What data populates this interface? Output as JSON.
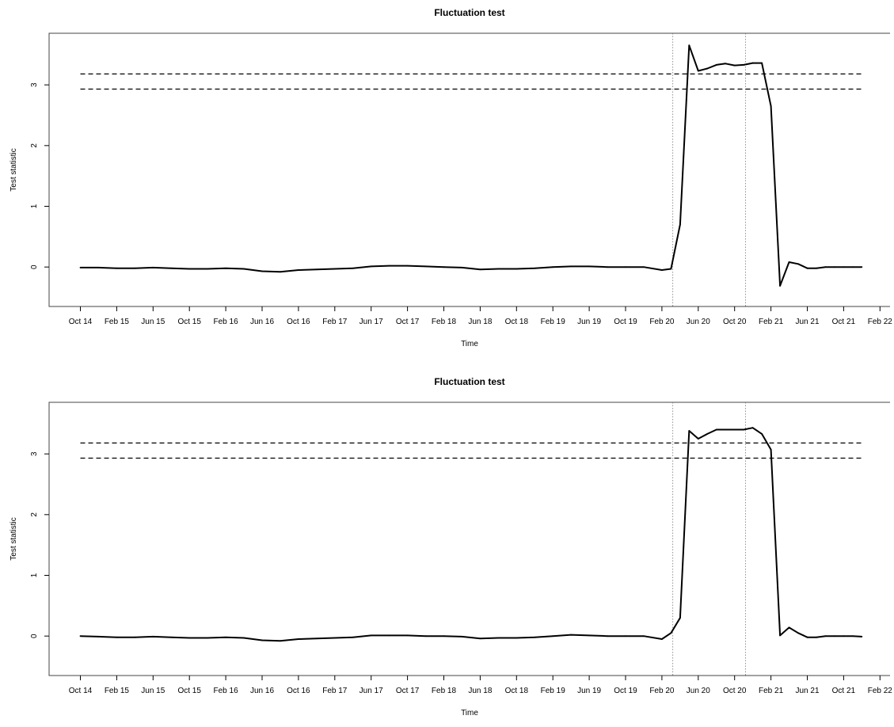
{
  "chart_data": [
    {
      "type": "line",
      "title": "Fluctuation test",
      "xlabel": "Time",
      "ylabel": "Test statistic",
      "x_tick_labels": [
        "Oct 14",
        "Feb 15",
        "Jun 15",
        "Oct 15",
        "Feb 16",
        "Jun 16",
        "Oct 16",
        "Feb 17",
        "Jun 17",
        "Oct 17",
        "Feb 18",
        "Jun 18",
        "Oct 18",
        "Feb 19",
        "Jun 19",
        "Oct 19",
        "Feb 20",
        "Jun 20",
        "Oct 20",
        "Feb 21",
        "Jun 21",
        "Oct 21",
        "Feb 22"
      ],
      "x_tick_months": [
        0,
        4,
        8,
        12,
        16,
        20,
        24,
        28,
        32,
        36,
        40,
        44,
        48,
        52,
        56,
        60,
        64,
        68,
        72,
        76,
        80,
        84,
        88
      ],
      "y_ticks": [
        0,
        1,
        2,
        3
      ],
      "xlim": [
        0,
        88
      ],
      "ylim": [
        -0.65,
        3.85
      ],
      "grid": false,
      "critical_values": [
        3.18,
        2.93
      ],
      "reference_lines_x_month": [
        65.2,
        73.2
      ],
      "series": [
        {
          "x_month": [
            0,
            2,
            4,
            6,
            8,
            10,
            12,
            14,
            16,
            18,
            20,
            22,
            24,
            26,
            28,
            30,
            32,
            34,
            36,
            38,
            40,
            42,
            44,
            46,
            48,
            50,
            52,
            54,
            56,
            58,
            60,
            62,
            64,
            65,
            66,
            67,
            68,
            69,
            70,
            71,
            72,
            73,
            74,
            75,
            76,
            77,
            78,
            79,
            80,
            81,
            82,
            83,
            84,
            85,
            86
          ],
          "values": [
            -0.01,
            -0.01,
            -0.02,
            -0.02,
            -0.01,
            -0.02,
            -0.03,
            -0.03,
            -0.02,
            -0.03,
            -0.07,
            -0.08,
            -0.05,
            -0.04,
            -0.03,
            -0.02,
            0.01,
            0.02,
            0.02,
            0.01,
            0.0,
            -0.01,
            -0.04,
            -0.03,
            -0.03,
            -0.02,
            0.0,
            0.01,
            0.01,
            0.0,
            0.0,
            0.0,
            -0.05,
            -0.03,
            0.7,
            3.65,
            3.23,
            3.27,
            3.33,
            3.35,
            3.32,
            3.33,
            3.36,
            3.36,
            2.65,
            -0.31,
            0.08,
            0.05,
            -0.02,
            -0.02,
            0.0,
            0.0,
            0.0,
            0.0,
            0.0
          ]
        }
      ]
    },
    {
      "type": "line",
      "title": "Fluctuation test",
      "xlabel": "Time",
      "ylabel": "Test statistic",
      "x_tick_labels": [
        "Oct 14",
        "Feb 15",
        "Jun 15",
        "Oct 15",
        "Feb 16",
        "Jun 16",
        "Oct 16",
        "Feb 17",
        "Jun 17",
        "Oct 17",
        "Feb 18",
        "Jun 18",
        "Oct 18",
        "Feb 19",
        "Jun 19",
        "Oct 19",
        "Feb 20",
        "Jun 20",
        "Oct 20",
        "Feb 21",
        "Jun 21",
        "Oct 21",
        "Feb 22"
      ],
      "x_tick_months": [
        0,
        4,
        8,
        12,
        16,
        20,
        24,
        28,
        32,
        36,
        40,
        44,
        48,
        52,
        56,
        60,
        64,
        68,
        72,
        76,
        80,
        84,
        88
      ],
      "y_ticks": [
        0,
        1,
        2,
        3
      ],
      "xlim": [
        0,
        88
      ],
      "ylim": [
        -0.65,
        3.85
      ],
      "grid": false,
      "critical_values": [
        3.18,
        2.93
      ],
      "reference_lines_x_month": [
        65.2,
        73.2
      ],
      "series": [
        {
          "x_month": [
            0,
            2,
            4,
            6,
            8,
            10,
            12,
            14,
            16,
            18,
            20,
            22,
            24,
            26,
            28,
            30,
            32,
            34,
            36,
            38,
            40,
            42,
            44,
            46,
            48,
            50,
            52,
            54,
            56,
            58,
            60,
            62,
            64,
            65,
            66,
            67,
            68,
            69,
            70,
            71,
            72,
            73,
            74,
            75,
            76,
            77,
            78,
            79,
            80,
            81,
            82,
            83,
            84,
            85,
            86
          ],
          "values": [
            0.0,
            -0.01,
            -0.02,
            -0.02,
            -0.01,
            -0.02,
            -0.03,
            -0.03,
            -0.02,
            -0.03,
            -0.07,
            -0.08,
            -0.05,
            -0.04,
            -0.03,
            -0.02,
            0.01,
            0.01,
            0.01,
            0.0,
            0.0,
            -0.01,
            -0.04,
            -0.03,
            -0.03,
            -0.02,
            0.0,
            0.02,
            0.01,
            0.0,
            0.0,
            0.0,
            -0.05,
            0.05,
            0.3,
            3.38,
            3.25,
            3.33,
            3.4,
            3.4,
            3.4,
            3.4,
            3.43,
            3.33,
            3.07,
            0.01,
            0.14,
            0.05,
            -0.02,
            -0.02,
            0.0,
            0.0,
            0.0,
            0.0,
            -0.01
          ]
        }
      ]
    }
  ]
}
